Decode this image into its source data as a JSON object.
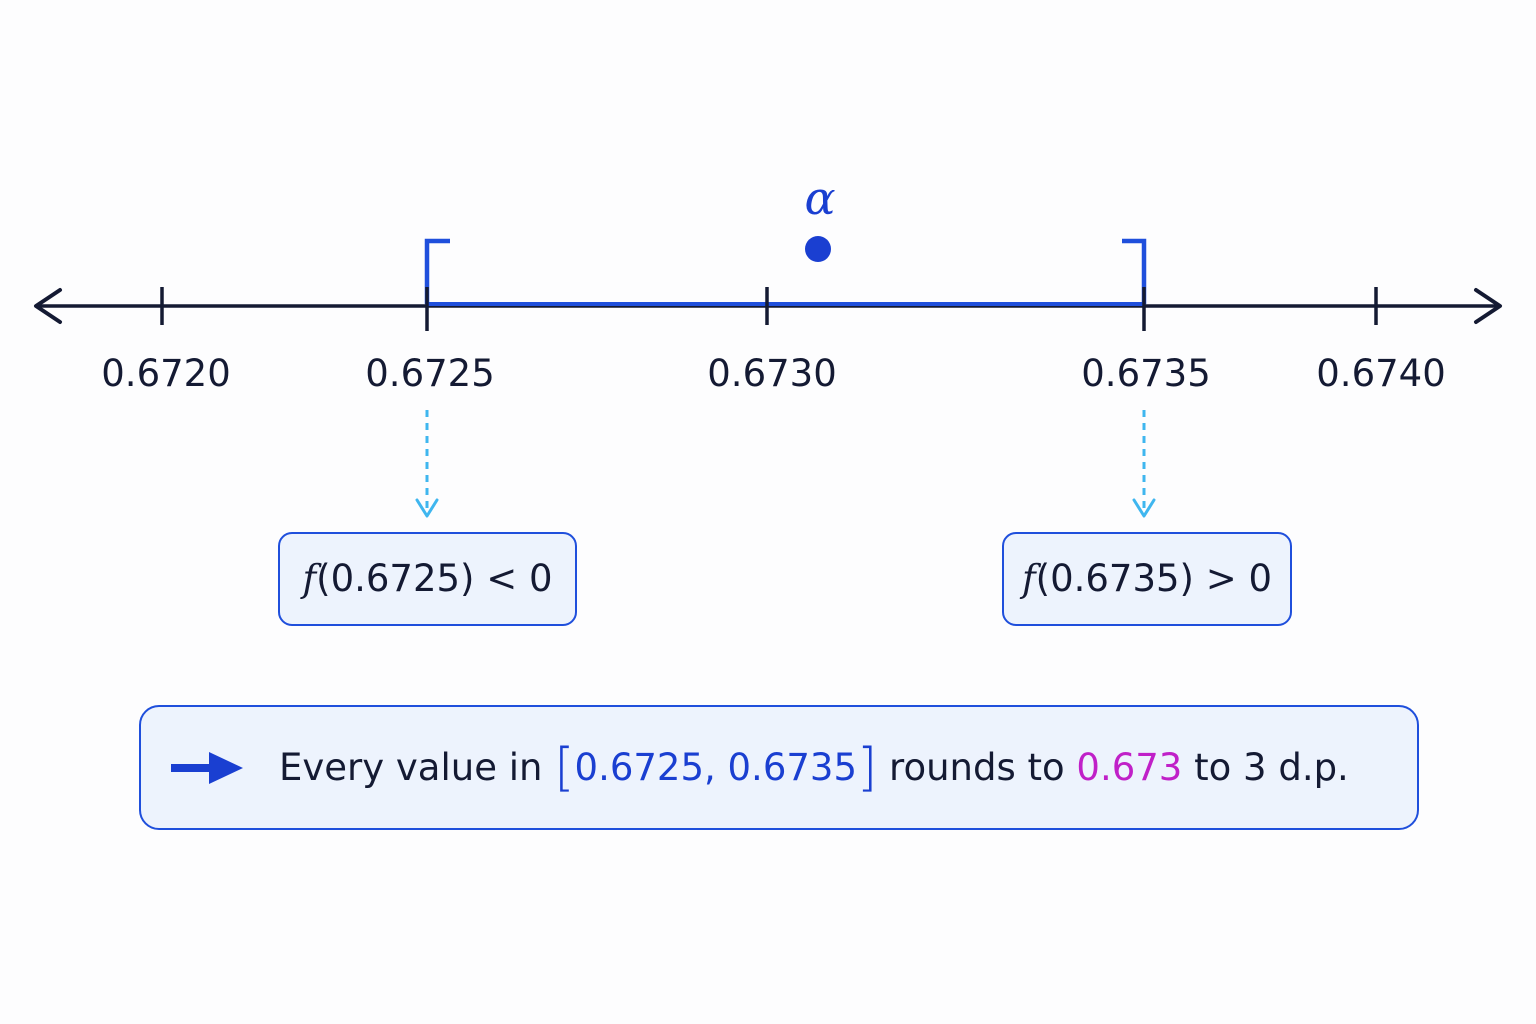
{
  "tick_labels": [
    "0.6720",
    "0.6725",
    "0.6730",
    "0.6735",
    "0.6740"
  ],
  "root_label": "α",
  "left_condition": {
    "function": "f",
    "argument": "(0.6725)",
    "relation": "< 0"
  },
  "right_condition": {
    "function": "f",
    "argument": "(0.6735)",
    "relation": "> 0"
  },
  "conclusion": {
    "prefix": "Every value in ",
    "open_bracket": "[",
    "interval": "0.6725, 0.6735",
    "close_bracket": "]",
    "middle": " rounds to ",
    "rounded_value": "0.673",
    "suffix": " to 3 d.p."
  },
  "colors": {
    "axis": "#141a33",
    "interval": "#1f4fdc",
    "root": "#1a3fd1",
    "dashed_arrow": "#3fb6ef",
    "box_fill": "#edf3fd",
    "highlight": "#c020c8"
  },
  "icons": {
    "conclusion_arrow": "right-arrow-icon",
    "axis_ends": "double-headed-arrow-icon"
  }
}
